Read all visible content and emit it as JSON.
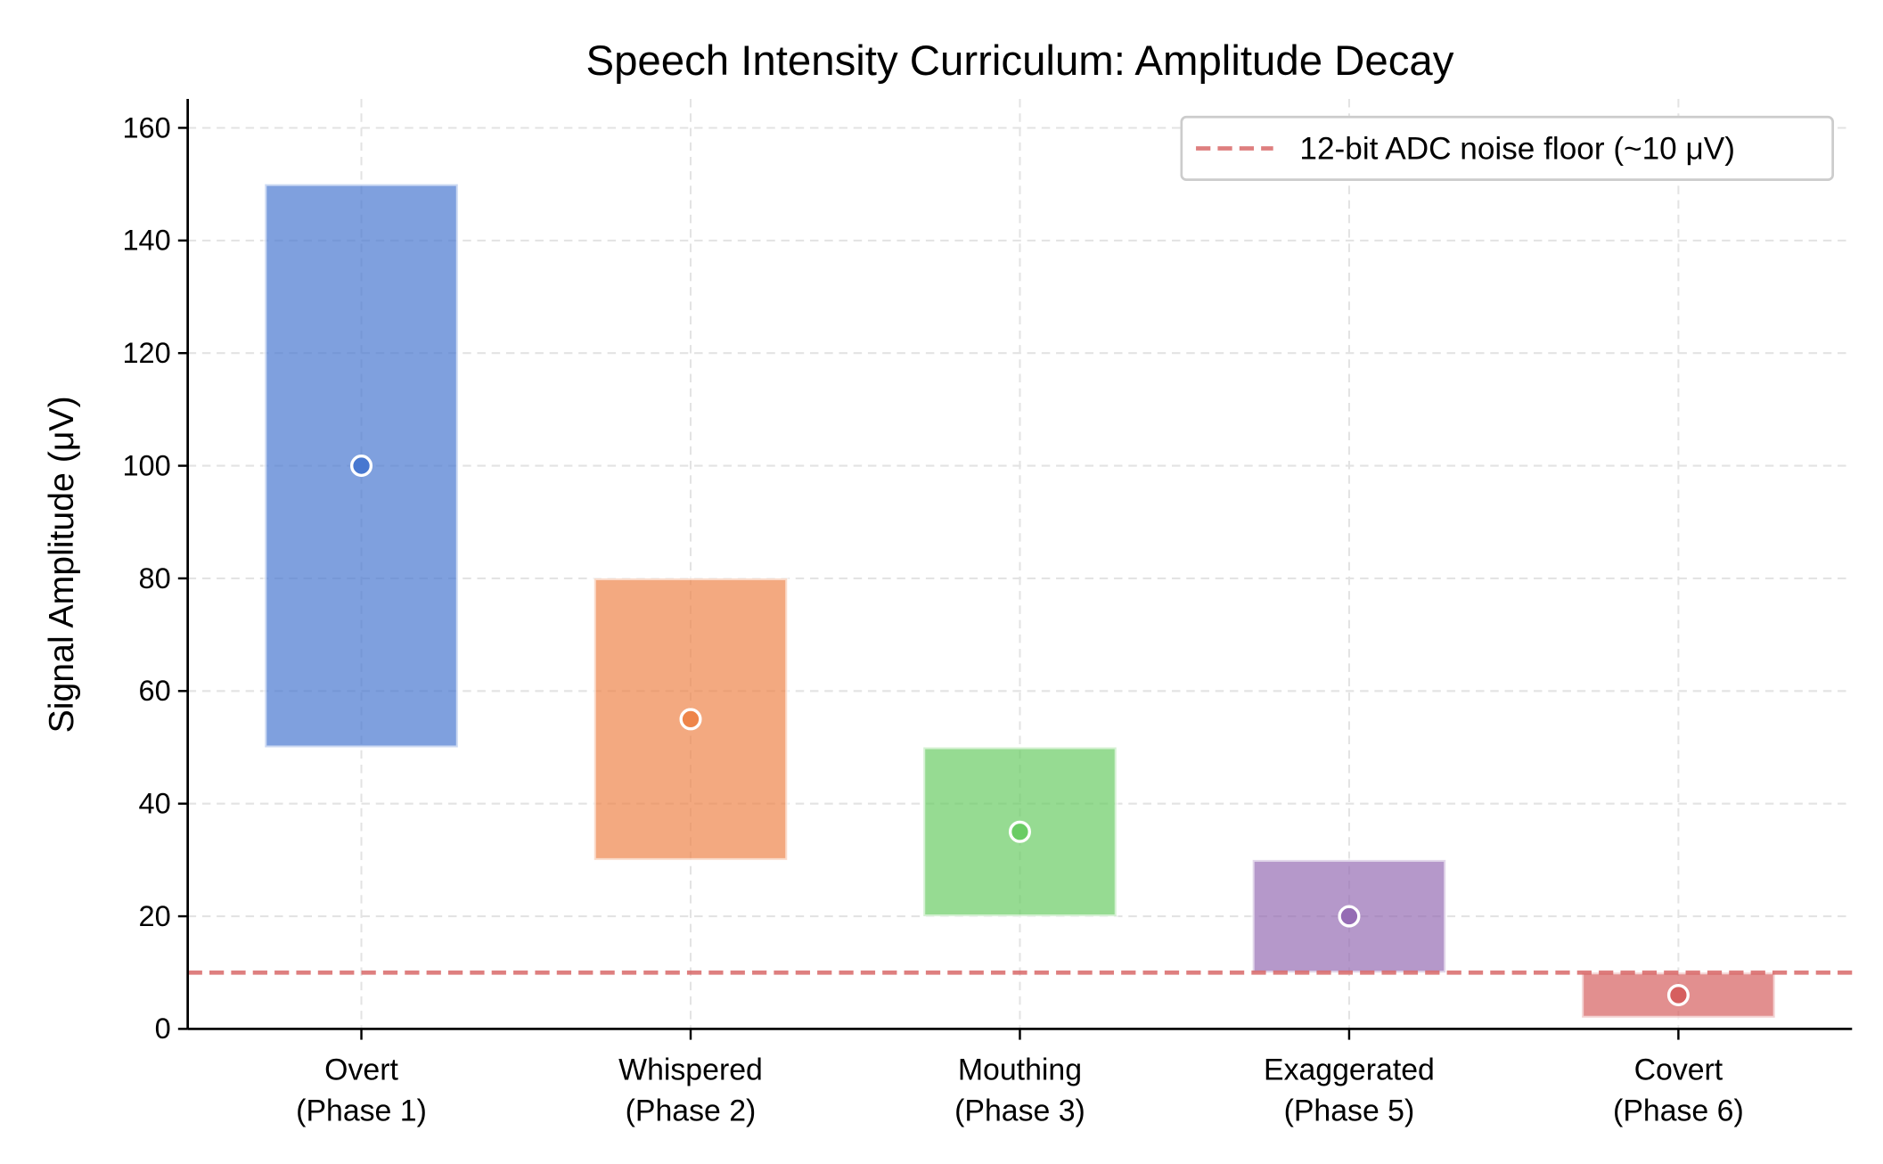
{
  "chart_data": {
    "type": "bar",
    "subtype": "floating-range-with-center-marker",
    "title": "Speech Intensity Curriculum: Amplitude Decay",
    "xlabel": "",
    "ylabel": "Signal Amplitude (μV)",
    "ylim": [
      0,
      165
    ],
    "yticks": [
      0,
      20,
      40,
      60,
      80,
      100,
      120,
      140,
      160
    ],
    "grid": true,
    "legend_placement": "top-right",
    "categories": [
      {
        "line1": "Overt",
        "line2": "(Phase 1)"
      },
      {
        "line1": "Whispered",
        "line2": "(Phase 2)"
      },
      {
        "line1": "Mouthing",
        "line2": "(Phase 3)"
      },
      {
        "line1": "Exaggerated",
        "line2": "(Phase 5)"
      },
      {
        "line1": "Covert",
        "line2": "(Phase 6)"
      }
    ],
    "ranges": [
      {
        "low": 50,
        "high": 150,
        "center": 100,
        "color": "#4878d0"
      },
      {
        "low": 30,
        "high": 80,
        "center": 55,
        "color": "#ee854a"
      },
      {
        "low": 20,
        "high": 50,
        "center": 35,
        "color": "#6acc64"
      },
      {
        "low": 10,
        "high": 30,
        "center": 20,
        "color": "#956cb4"
      },
      {
        "low": 2,
        "high": 10,
        "center": 6,
        "color": "#d65f5f"
      }
    ],
    "reference_line": {
      "value": 10,
      "label": "12-bit ADC noise floor (~10 μV)",
      "color": "#d65f5f",
      "style": "dashed"
    }
  }
}
